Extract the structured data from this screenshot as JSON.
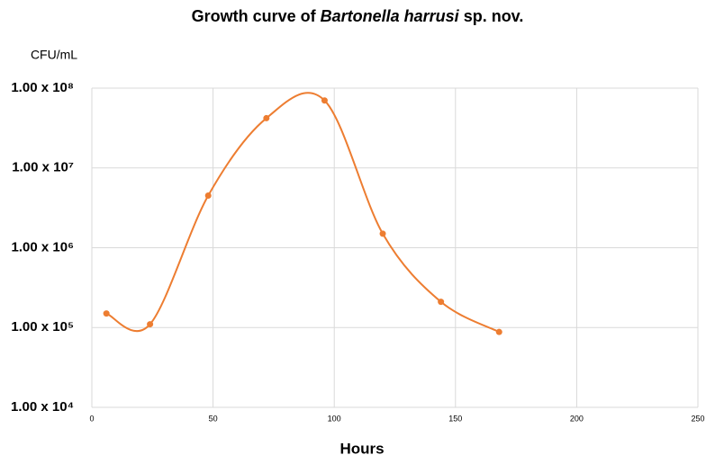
{
  "chart_data": {
    "type": "line",
    "title": [
      "Growth curve of ",
      "Bartonella harrusi",
      " sp. nov."
    ],
    "y_label": "CFU/mL",
    "x_label": "Hours",
    "x": [
      6,
      24,
      48,
      72,
      96,
      120,
      144,
      168
    ],
    "series": [
      {
        "color": "#ed7d31",
        "values": [
          150000,
          110000,
          4500000,
          42000000,
          70000000,
          1500000,
          210000,
          88000
        ]
      }
    ],
    "xlim": [
      0,
      250
    ],
    "xticks": [
      0,
      50,
      100,
      150,
      200,
      250
    ],
    "ylim": [
      10000,
      100000000
    ],
    "log_y": true,
    "smooth": true,
    "grid": true,
    "yticks": [
      {
        "value": 10000,
        "label": "1.00 x 10⁴"
      },
      {
        "value": 100000,
        "label": "1.00 x 10⁵"
      },
      {
        "value": 1000000,
        "label": "1.00 x 10⁶"
      },
      {
        "value": 10000000,
        "label": "1.00 x 10⁷"
      },
      {
        "value": 100000000,
        "label": "1.00 x 10⁸"
      }
    ]
  }
}
